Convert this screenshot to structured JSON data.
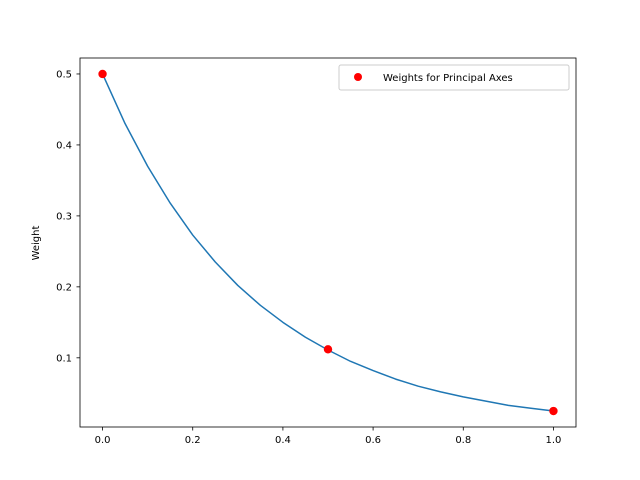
{
  "chart_data": {
    "type": "scatter",
    "title": "",
    "xlabel": "",
    "ylabel": "Weight",
    "xlim": [
      -0.05,
      1.05
    ],
    "ylim": [
      0.0025,
      0.5225
    ],
    "x_ticks": [
      0.0,
      0.2,
      0.4,
      0.6,
      0.8,
      1.0
    ],
    "x_tick_labels": [
      "0.0",
      "0.2",
      "0.4",
      "0.6",
      "0.8",
      "1.0"
    ],
    "y_ticks": [
      0.1,
      0.2,
      0.3,
      0.4,
      0.5
    ],
    "y_tick_labels": [
      "0.1",
      "0.2",
      "0.3",
      "0.4",
      "0.5"
    ],
    "grid": false,
    "legend_position": "top-right",
    "series": [
      {
        "kind": "line",
        "color": "#1f77b4",
        "x": [
          0.0,
          0.05,
          0.1,
          0.15,
          0.2,
          0.25,
          0.3,
          0.35,
          0.4,
          0.45,
          0.5,
          0.55,
          0.6,
          0.65,
          0.7,
          0.75,
          0.8,
          0.85,
          0.9,
          0.95,
          1.0
        ],
        "y": [
          0.5,
          0.43,
          0.37,
          0.318,
          0.273,
          0.235,
          0.202,
          0.174,
          0.15,
          0.129,
          0.111,
          0.095,
          0.082,
          0.07,
          0.06,
          0.052,
          0.045,
          0.039,
          0.033,
          0.029,
          0.025
        ]
      },
      {
        "kind": "scatter",
        "name": "Weights for Principal Axes",
        "color": "#ff0000",
        "x": [
          0.0,
          0.5,
          1.0
        ],
        "y": [
          0.5,
          0.112,
          0.025
        ]
      }
    ]
  }
}
